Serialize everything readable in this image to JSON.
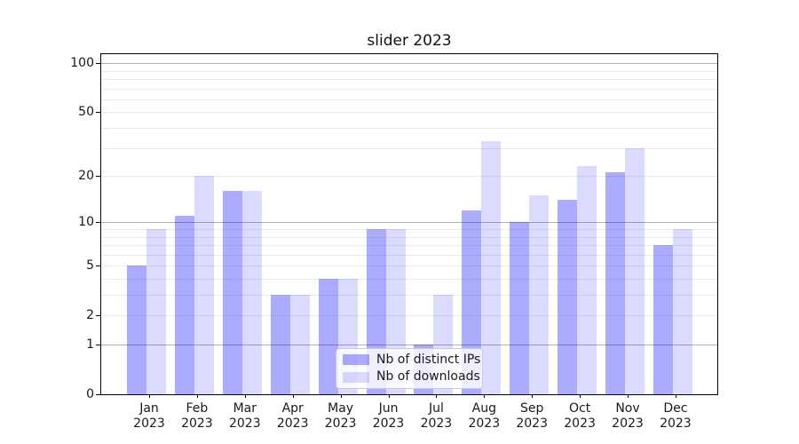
{
  "window": {
    "background_color": "#ffffff"
  },
  "chart_data": {
    "type": "bar",
    "title": "slider 2023",
    "categories": [
      "Jan",
      "Feb",
      "Mar",
      "Apr",
      "May",
      "Jun",
      "Jul",
      "Aug",
      "Sep",
      "Oct",
      "Nov",
      "Dec"
    ],
    "x_year_suffix": "2023",
    "series": [
      {
        "name": "Nb of distinct IPs",
        "color": "#0000ff54",
        "values": [
          5,
          11,
          16,
          3,
          4,
          9,
          1,
          12,
          10,
          14,
          21,
          7
        ]
      },
      {
        "name": "Nb of downloads",
        "color": "#0000ff24",
        "values": [
          9,
          20,
          16,
          3,
          4,
          9,
          3,
          33,
          15,
          23,
          30,
          9
        ]
      }
    ],
    "y_axis": {
      "scale": "log1p",
      "ticks": [
        0,
        1,
        2,
        5,
        10,
        20,
        50,
        100
      ],
      "ylim": [
        0,
        113.6
      ]
    },
    "grid": {
      "orientation": "horizontal",
      "major_values": [
        1,
        10,
        100
      ],
      "minor_values": [
        2,
        3,
        4,
        5,
        6,
        7,
        8,
        9,
        20,
        30,
        40,
        50,
        60,
        70,
        80,
        90
      ],
      "major_color": "#b0b0b0",
      "minor_color": "#ebebeb"
    },
    "legend": {
      "position": "lower center"
    },
    "frame_color": "#000000",
    "text_color": "#1a1a1a"
  }
}
